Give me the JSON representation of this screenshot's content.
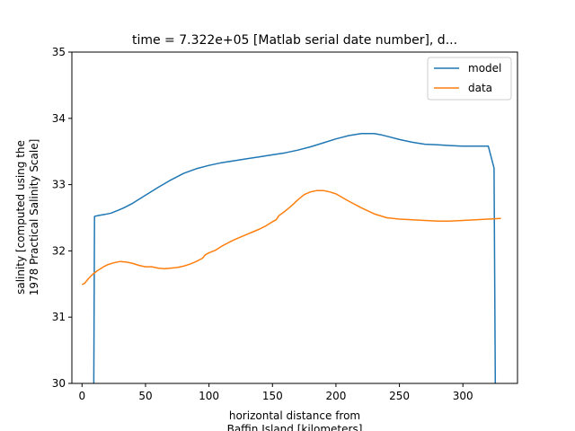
{
  "chart_data": {
    "type": "line",
    "title": "time = 7.322e+05 [Matlab serial date number], d...",
    "xlabel_lines": [
      "horizontal distance from",
      "Baffin Island [kilometers]"
    ],
    "ylabel_lines": [
      "salinity [computed using the",
      "1978 Practical Salinity Scale]"
    ],
    "xlim": [
      -8,
      343
    ],
    "ylim": [
      30,
      35
    ],
    "x_ticks": [
      0,
      50,
      100,
      150,
      200,
      250,
      300
    ],
    "y_ticks": [
      30,
      31,
      32,
      33,
      34,
      35
    ],
    "legend_position": "top-right",
    "grid": false,
    "series": [
      {
        "name": "model",
        "color": "#1f77b4",
        "x": [
          9.3,
          9.8,
          12,
          18,
          23,
          28,
          33,
          40,
          50,
          60,
          70,
          80,
          90,
          100,
          110,
          120,
          130,
          140,
          150,
          160,
          170,
          180,
          190,
          200,
          210,
          220,
          230,
          236,
          240,
          250,
          260,
          270,
          280,
          290,
          300,
          310,
          320,
          324.5,
          325.5
        ],
        "y": [
          30,
          32.52,
          32.53,
          32.55,
          32.57,
          32.61,
          32.65,
          32.72,
          32.84,
          32.96,
          33.07,
          33.17,
          33.24,
          33.29,
          33.33,
          33.36,
          33.39,
          33.42,
          33.45,
          33.48,
          33.52,
          33.57,
          33.63,
          33.69,
          33.74,
          33.77,
          33.77,
          33.75,
          33.73,
          33.68,
          33.64,
          33.61,
          33.6,
          33.59,
          33.58,
          33.58,
          33.58,
          33.25,
          30
        ]
      },
      {
        "name": "data",
        "color": "#ff7f0e",
        "x": [
          0,
          2,
          5,
          8,
          12,
          17,
          20,
          25,
          30,
          35,
          40,
          45,
          50,
          55,
          60,
          65,
          70,
          75,
          80,
          85,
          90,
          95,
          97,
          100,
          105,
          110,
          115,
          120,
          125,
          130,
          135,
          140,
          145,
          150,
          153,
          155,
          160,
          165,
          170,
          175,
          180,
          185,
          190,
          195,
          200,
          210,
          220,
          230,
          240,
          250,
          260,
          270,
          280,
          290,
          300,
          310,
          320,
          330
        ],
        "y": [
          31.49,
          31.51,
          31.58,
          31.64,
          31.7,
          31.76,
          31.79,
          31.82,
          31.84,
          31.83,
          31.81,
          31.78,
          31.76,
          31.76,
          31.74,
          31.73,
          31.74,
          31.75,
          31.77,
          31.8,
          31.84,
          31.89,
          31.94,
          31.97,
          32.01,
          32.07,
          32.12,
          32.17,
          32.21,
          32.25,
          32.29,
          32.33,
          32.38,
          32.44,
          32.47,
          32.53,
          32.6,
          32.68,
          32.77,
          32.85,
          32.89,
          32.91,
          32.91,
          32.89,
          32.86,
          32.75,
          32.65,
          32.56,
          32.5,
          32.48,
          32.47,
          32.46,
          32.45,
          32.45,
          32.46,
          32.47,
          32.48,
          32.49
        ]
      }
    ]
  }
}
